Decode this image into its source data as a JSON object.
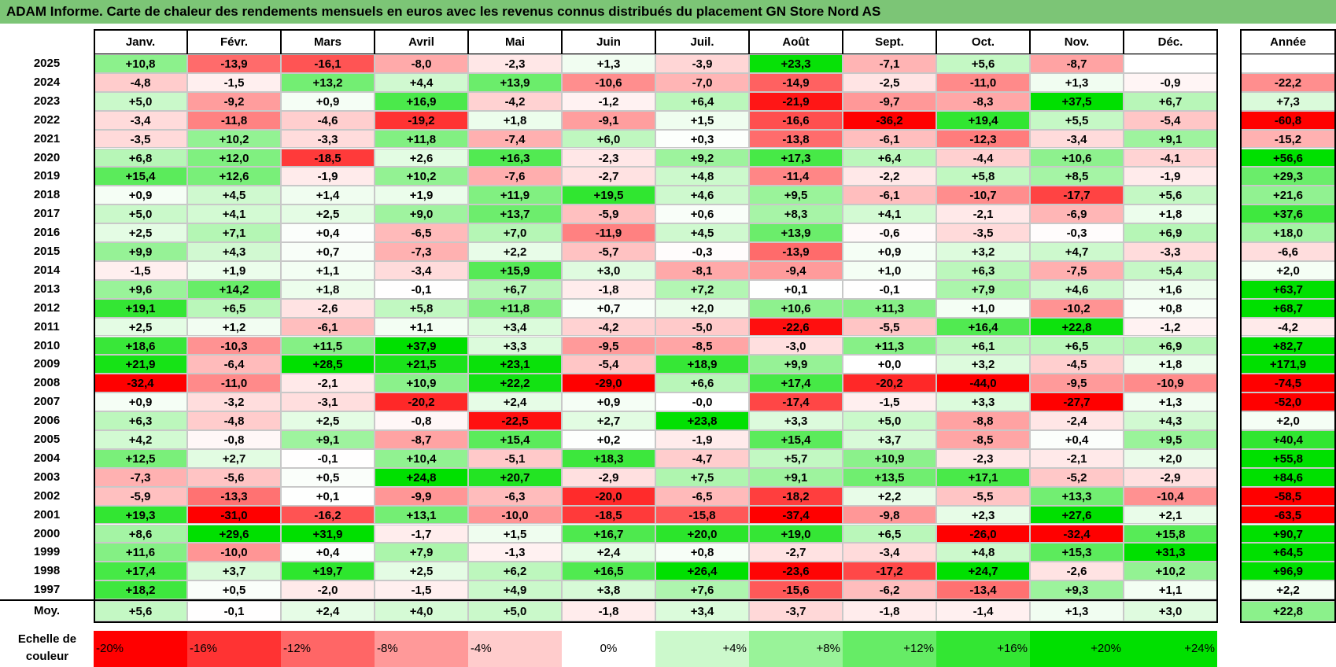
{
  "title": "ADAM Informe. Carte de chaleur des rendements mensuels en euros avec les revenus connus distribués du placement GN Store Nord AS",
  "chart_data": {
    "type": "heatmap",
    "title": "ADAM Informe. Carte de chaleur des rendements mensuels en euros avec les revenus connus distribués du placement GN Store Nord AS",
    "columns": [
      "Janv.",
      "Févr.",
      "Mars",
      "Avril",
      "Mai",
      "Juin",
      "Juil.",
      "Août",
      "Sept.",
      "Oct.",
      "Nov.",
      "Déc."
    ],
    "year_column_label": "Année",
    "rows": [
      {
        "year": "2025",
        "values": [
          "+10,8",
          "-13,9",
          "-16,1",
          "-8,0",
          "-2,3",
          "+1,3",
          "-3,9",
          "+23,3",
          "-7,1",
          "+5,6",
          "-8,7",
          ""
        ],
        "annual": ""
      },
      {
        "year": "2024",
        "values": [
          "-4,8",
          "-1,5",
          "+13,2",
          "+4,4",
          "+13,9",
          "-10,6",
          "-7,0",
          "-14,9",
          "-2,5",
          "-11,0",
          "+1,3",
          "-0,9"
        ],
        "annual": "-22,2"
      },
      {
        "year": "2023",
        "values": [
          "+5,0",
          "-9,2",
          "+0,9",
          "+16,9",
          "-4,2",
          "-1,2",
          "+6,4",
          "-21,9",
          "-9,7",
          "-8,3",
          "+37,5",
          "+6,7"
        ],
        "annual": "+7,3"
      },
      {
        "year": "2022",
        "values": [
          "-3,4",
          "-11,8",
          "-4,6",
          "-19,2",
          "+1,8",
          "-9,1",
          "+1,5",
          "-16,6",
          "-36,2",
          "+19,4",
          "+5,5",
          "-5,4"
        ],
        "annual": "-60,8"
      },
      {
        "year": "2021",
        "values": [
          "-3,5",
          "+10,2",
          "-3,3",
          "+11,8",
          "-7,4",
          "+6,0",
          "+0,3",
          "-13,8",
          "-6,1",
          "-12,3",
          "-3,4",
          "+9,1"
        ],
        "annual": "-15,2"
      },
      {
        "year": "2020",
        "values": [
          "+6,8",
          "+12,0",
          "-18,5",
          "+2,6",
          "+16,3",
          "-2,3",
          "+9,2",
          "+17,3",
          "+6,4",
          "-4,4",
          "+10,6",
          "-4,1"
        ],
        "annual": "+56,6"
      },
      {
        "year": "2019",
        "values": [
          "+15,4",
          "+12,6",
          "-1,9",
          "+10,2",
          "-7,6",
          "-2,7",
          "+4,8",
          "-11,4",
          "-2,2",
          "+5,8",
          "+8,5",
          "-1,9"
        ],
        "annual": "+29,3"
      },
      {
        "year": "2018",
        "values": [
          "+0,9",
          "+4,5",
          "+1,4",
          "+1,9",
          "+11,9",
          "+19,5",
          "+4,6",
          "+9,5",
          "-6,1",
          "-10,7",
          "-17,7",
          "+5,6"
        ],
        "annual": "+21,6"
      },
      {
        "year": "2017",
        "values": [
          "+5,0",
          "+4,1",
          "+2,5",
          "+9,0",
          "+13,7",
          "-5,9",
          "+0,6",
          "+8,3",
          "+4,1",
          "-2,1",
          "-6,9",
          "+1,8"
        ],
        "annual": "+37,6"
      },
      {
        "year": "2016",
        "values": [
          "+2,5",
          "+7,1",
          "+0,4",
          "-6,5",
          "+7,0",
          "-11,9",
          "+4,5",
          "+13,9",
          "-0,6",
          "-3,5",
          "-0,3",
          "+6,9"
        ],
        "annual": "+18,0"
      },
      {
        "year": "2015",
        "values": [
          "+9,9",
          "+4,3",
          "+0,7",
          "-7,3",
          "+2,2",
          "-5,7",
          "-0,3",
          "-13,9",
          "+0,9",
          "+3,2",
          "+4,7",
          "-3,3"
        ],
        "annual": "-6,6"
      },
      {
        "year": "2014",
        "values": [
          "-1,5",
          "+1,9",
          "+1,1",
          "-3,4",
          "+15,9",
          "+3,0",
          "-8,1",
          "-9,4",
          "+1,0",
          "+6,3",
          "-7,5",
          "+5,4"
        ],
        "annual": "+2,0"
      },
      {
        "year": "2013",
        "values": [
          "+9,6",
          "+14,2",
          "+1,8",
          "-0,1",
          "+6,7",
          "-1,8",
          "+7,2",
          "+0,1",
          "-0,1",
          "+7,9",
          "+4,6",
          "+1,6"
        ],
        "annual": "+63,7"
      },
      {
        "year": "2012",
        "values": [
          "+19,1",
          "+6,5",
          "-2,6",
          "+5,8",
          "+11,8",
          "+0,7",
          "+2,0",
          "+10,6",
          "+11,3",
          "+1,0",
          "-10,2",
          "+0,8"
        ],
        "annual": "+68,7"
      },
      {
        "year": "2011",
        "values": [
          "+2,5",
          "+1,2",
          "-6,1",
          "+1,1",
          "+3,4",
          "-4,2",
          "-5,0",
          "-22,6",
          "-5,5",
          "+16,4",
          "+22,8",
          "-1,2"
        ],
        "annual": "-4,2"
      },
      {
        "year": "2010",
        "values": [
          "+18,6",
          "-10,3",
          "+11,5",
          "+37,9",
          "+3,3",
          "-9,5",
          "-8,5",
          "-3,0",
          "+11,3",
          "+6,1",
          "+6,5",
          "+6,9"
        ],
        "annual": "+82,7"
      },
      {
        "year": "2009",
        "values": [
          "+21,9",
          "-6,4",
          "+28,5",
          "+21,5",
          "+23,1",
          "-5,4",
          "+18,9",
          "+9,9",
          "+0,0",
          "+3,2",
          "-4,5",
          "+1,8"
        ],
        "annual": "+171,9"
      },
      {
        "year": "2008",
        "values": [
          "-32,4",
          "-11,0",
          "-2,1",
          "+10,9",
          "+22,2",
          "-29,0",
          "+6,6",
          "+17,4",
          "-20,2",
          "-44,0",
          "-9,5",
          "-10,9"
        ],
        "annual": "-74,5"
      },
      {
        "year": "2007",
        "values": [
          "+0,9",
          "-3,2",
          "-3,1",
          "-20,2",
          "+2,4",
          "+0,9",
          "-0,0",
          "-17,4",
          "-1,5",
          "+3,3",
          "-27,7",
          "+1,3"
        ],
        "annual": "-52,0"
      },
      {
        "year": "2006",
        "values": [
          "+6,3",
          "-4,8",
          "+2,5",
          "-0,8",
          "-22,5",
          "+2,7",
          "+23,8",
          "+3,3",
          "+5,0",
          "-8,8",
          "-2,4",
          "+4,3"
        ],
        "annual": "+2,0"
      },
      {
        "year": "2005",
        "values": [
          "+4,2",
          "-0,8",
          "+9,1",
          "-8,7",
          "+15,4",
          "+0,2",
          "-1,9",
          "+15,4",
          "+3,7",
          "-8,5",
          "+0,4",
          "+9,5"
        ],
        "annual": "+40,4"
      },
      {
        "year": "2004",
        "values": [
          "+12,5",
          "+2,7",
          "-0,1",
          "+10,4",
          "-5,1",
          "+18,3",
          "-4,7",
          "+5,7",
          "+10,9",
          "-2,3",
          "-2,1",
          "+2,0"
        ],
        "annual": "+55,8"
      },
      {
        "year": "2003",
        "values": [
          "-7,3",
          "-5,6",
          "+0,5",
          "+24,8",
          "+20,7",
          "-2,9",
          "+7,5",
          "+9,1",
          "+13,5",
          "+17,1",
          "-5,2",
          "-2,9"
        ],
        "annual": "+84,6"
      },
      {
        "year": "2002",
        "values": [
          "-5,9",
          "-13,3",
          "+0,1",
          "-9,9",
          "-6,3",
          "-20,0",
          "-6,5",
          "-18,2",
          "+2,2",
          "-5,5",
          "+13,3",
          "-10,4"
        ],
        "annual": "-58,5"
      },
      {
        "year": "2001",
        "values": [
          "+19,3",
          "-31,0",
          "-16,2",
          "+13,1",
          "-10,0",
          "-18,5",
          "-15,8",
          "-37,4",
          "-9,8",
          "+2,3",
          "+27,6",
          "+2,1"
        ],
        "annual": "-63,5"
      },
      {
        "year": "2000",
        "values": [
          "+8,6",
          "+29,6",
          "+31,9",
          "-1,7",
          "+1,5",
          "+16,7",
          "+20,0",
          "+19,0",
          "+6,5",
          "-26,0",
          "-32,4",
          "+15,8"
        ],
        "annual": "+90,7"
      },
      {
        "year": "1999",
        "values": [
          "+11,6",
          "-10,0",
          "+0,4",
          "+7,9",
          "-1,3",
          "+2,4",
          "+0,8",
          "-2,7",
          "-3,4",
          "+4,8",
          "+15,3",
          "+31,3"
        ],
        "annual": "+64,5"
      },
      {
        "year": "1998",
        "values": [
          "+17,4",
          "+3,7",
          "+19,7",
          "+2,5",
          "+6,2",
          "+16,5",
          "+26,4",
          "-23,6",
          "-17,2",
          "+24,7",
          "-2,6",
          "+10,2"
        ],
        "annual": "+96,9"
      },
      {
        "year": "1997",
        "values": [
          "+18,2",
          "+0,5",
          "-2,0",
          "-1,5",
          "+4,9",
          "+3,8",
          "+7,6",
          "-15,6",
          "-6,2",
          "-13,4",
          "+9,3",
          "+1,1"
        ],
        "annual": "+2,2"
      }
    ],
    "average": {
      "label": "Moy.",
      "values": [
        "+5,6",
        "-0,1",
        "+2,4",
        "+4,0",
        "+5,0",
        "-1,8",
        "+3,4",
        "-3,7",
        "-1,8",
        "-1,4",
        "+1,3",
        "+3,0"
      ],
      "annual": "+22,8"
    },
    "legend": {
      "label": "Echelle de couleur",
      "steps": [
        {
          "label": "-20%",
          "value": -20
        },
        {
          "label": "-16%",
          "value": -16
        },
        {
          "label": "-12%",
          "value": -12
        },
        {
          "label": "-8%",
          "value": -8
        },
        {
          "label": "-4%",
          "value": -4
        },
        {
          "label": "0%",
          "value": 0
        },
        {
          "label": "+4%",
          "value": 4
        },
        {
          "label": "+8%",
          "value": 8
        },
        {
          "label": "+12%",
          "value": 12
        },
        {
          "label": "+16%",
          "value": 16
        },
        {
          "label": "+20%",
          "value": 20
        },
        {
          "label": "+24%",
          "value": 24
        }
      ]
    },
    "colors": {
      "negative_max": "#ff0000",
      "positive_max": "#00e000",
      "neutral": "#ffffff",
      "title_bg": "#7cc576"
    }
  }
}
